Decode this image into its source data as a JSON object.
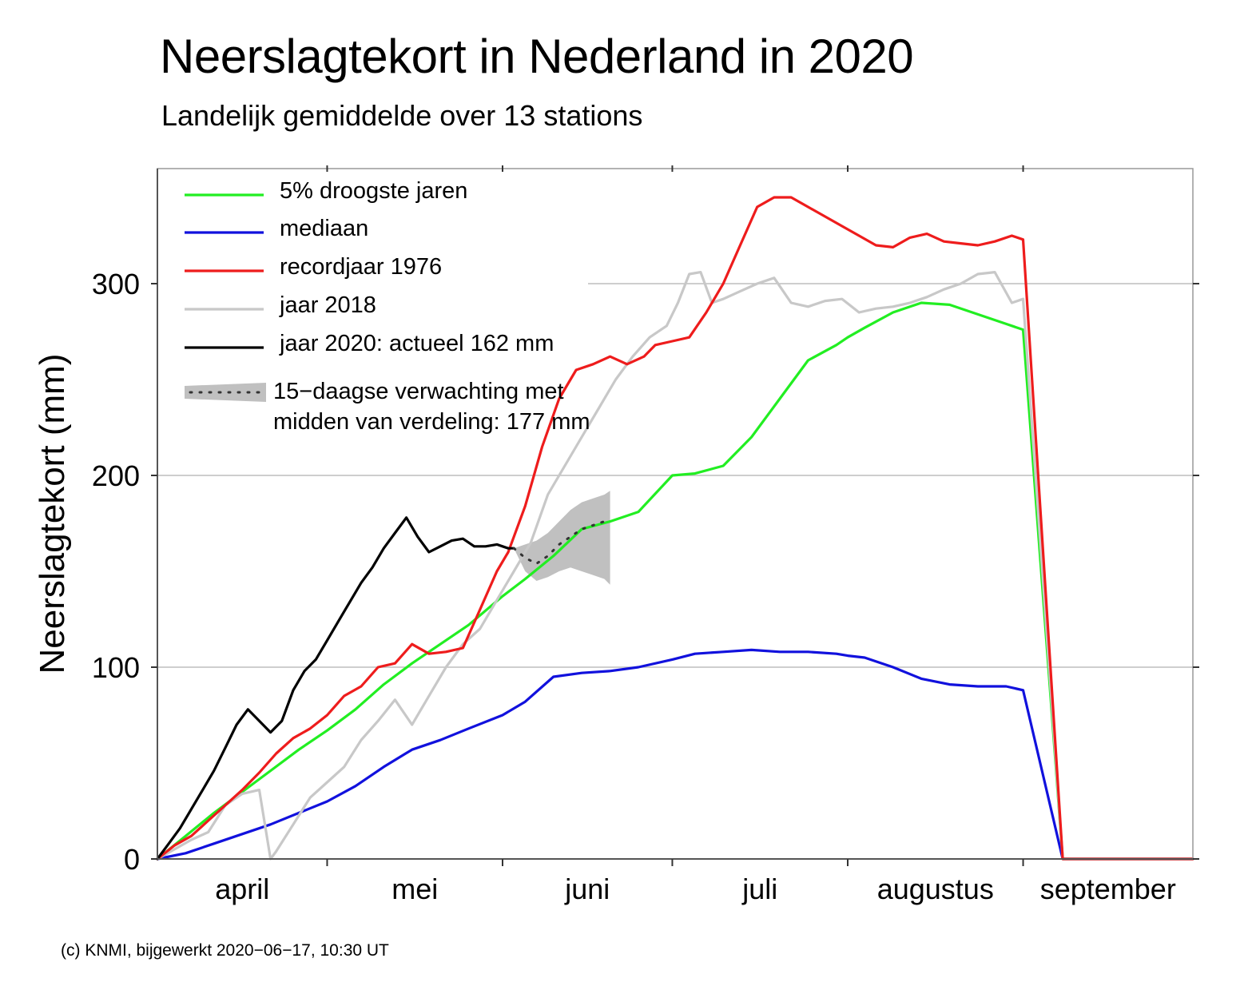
{
  "title": "Neerslagtekort in Nederland in 2020",
  "subtitle": "Landelijk gemiddelde over 13 stations",
  "footer": "(c) KNMI, bijgewerkt 2020−06−17, 10:30 UT",
  "colors": {
    "green": "#22ee22",
    "blue": "#1111dd",
    "red": "#ee1c1c",
    "gray": "#c8c8c8",
    "black": "#000000",
    "band": "#c0c0c0",
    "grid": "#bdbdbd"
  },
  "chart_data": {
    "type": "line",
    "ylabel": "Neerslagtekort (mm)",
    "xlabel": "",
    "ylim": [
      0,
      360
    ],
    "yticks": [
      0,
      100,
      200,
      300
    ],
    "x_unit": "day of season (0 = 1 april)",
    "xlim": [
      0,
      183
    ],
    "months": [
      {
        "label": "april",
        "start": 0,
        "end": 30
      },
      {
        "label": "mei",
        "start": 30,
        "end": 61
      },
      {
        "label": "juni",
        "start": 61,
        "end": 91
      },
      {
        "label": "juli",
        "start": 91,
        "end": 122
      },
      {
        "label": "augustus",
        "start": 122,
        "end": 153
      },
      {
        "label": "september",
        "start": 153,
        "end": 183
      }
    ],
    "grid": true,
    "legend_position": "top-left",
    "legend": [
      {
        "label": "5% droogste jaren",
        "series": "p95"
      },
      {
        "label": "mediaan",
        "series": "median"
      },
      {
        "label": "recordjaar 1976",
        "series": "y1976"
      },
      {
        "label": "jaar 2018",
        "series": "y2018"
      },
      {
        "label": "jaar 2020: actueel 162 mm",
        "series": "y2020"
      },
      {
        "label": "15−daagse verwachting met\nmidden van verdeling: 177 mm",
        "series": "forecast"
      }
    ],
    "series": [
      {
        "key": "p95",
        "color": "green",
        "x": [
          0,
          5,
          10,
          15,
          20,
          25,
          30,
          35,
          40,
          45,
          50,
          55,
          61,
          65,
          70,
          75,
          80,
          85,
          91,
          95,
          100,
          105,
          110,
          115,
          120,
          122,
          125,
          130,
          135,
          140,
          145,
          150,
          153,
          160,
          165,
          170,
          175,
          180,
          183
        ],
        "values": [
          0,
          12,
          24,
          35,
          46,
          57,
          67,
          78,
          91,
          102,
          112,
          122,
          137,
          146,
          158,
          172,
          176,
          181,
          200,
          201,
          205,
          220,
          240,
          260,
          268,
          272,
          277,
          285,
          290,
          289,
          284,
          279,
          276,
          0,
          0,
          0,
          0,
          0,
          0
        ]
      },
      {
        "key": "median",
        "color": "blue",
        "x": [
          0,
          5,
          10,
          15,
          20,
          25,
          30,
          35,
          40,
          45,
          50,
          55,
          61,
          65,
          70,
          75,
          80,
          85,
          91,
          95,
          100,
          105,
          110,
          115,
          120,
          122,
          125,
          130,
          135,
          140,
          145,
          150,
          153,
          160,
          165,
          170,
          175,
          180,
          183
        ],
        "values": [
          0,
          3,
          8,
          13,
          18,
          24,
          30,
          38,
          48,
          57,
          62,
          68,
          75,
          82,
          95,
          97,
          98,
          100,
          104,
          107,
          108,
          109,
          108,
          108,
          107,
          106,
          105,
          100,
          94,
          91,
          90,
          90,
          88,
          0,
          0,
          0,
          0,
          0,
          0
        ]
      },
      {
        "key": "y1976",
        "color": "red",
        "x": [
          0,
          3,
          6,
          9,
          12,
          15,
          18,
          21,
          24,
          27,
          30,
          33,
          36,
          39,
          42,
          45,
          48,
          51,
          54,
          57,
          60,
          62,
          65,
          68,
          71,
          74,
          77,
          80,
          83,
          86,
          88,
          91,
          94,
          97,
          100,
          103,
          106,
          109,
          112,
          115,
          118,
          121,
          124,
          127,
          130,
          133,
          136,
          139,
          142,
          145,
          148,
          151,
          153,
          160,
          170,
          180,
          183
        ],
        "values": [
          0,
          7,
          12,
          20,
          28,
          36,
          45,
          55,
          63,
          68,
          75,
          85,
          90,
          100,
          102,
          112,
          107,
          108,
          110,
          130,
          150,
          160,
          184,
          215,
          240,
          255,
          258,
          262,
          258,
          262,
          268,
          270,
          272,
          285,
          300,
          320,
          340,
          345,
          345,
          340,
          335,
          330,
          325,
          320,
          319,
          324,
          326,
          322,
          321,
          320,
          322,
          325,
          323,
          0,
          0,
          0,
          0
        ]
      },
      {
        "key": "y2018",
        "color": "gray",
        "x": [
          0,
          3,
          6,
          9,
          12,
          15,
          18,
          20,
          21,
          24,
          27,
          30,
          33,
          36,
          39,
          42,
          45,
          48,
          51,
          54,
          57,
          60,
          63,
          66,
          69,
          72,
          75,
          78,
          81,
          84,
          87,
          90,
          92,
          94,
          96,
          98,
          100,
          103,
          106,
          109,
          112,
          115,
          118,
          121,
          124,
          127,
          130,
          133,
          136,
          139,
          142,
          145,
          148,
          151,
          153,
          160,
          170,
          180,
          183
        ],
        "values": [
          0,
          5,
          10,
          14,
          28,
          34,
          36,
          0,
          4,
          18,
          32,
          40,
          48,
          62,
          72,
          83,
          70,
          85,
          100,
          112,
          120,
          135,
          150,
          165,
          190,
          205,
          220,
          235,
          250,
          262,
          272,
          278,
          290,
          305,
          306,
          290,
          292,
          296,
          300,
          303,
          290,
          288,
          291,
          292,
          285,
          287,
          288,
          290,
          293,
          297,
          300,
          305,
          306,
          290,
          292,
          0,
          0,
          0,
          0
        ]
      },
      {
        "key": "y2020",
        "color": "black",
        "x": [
          0,
          2,
          4,
          6,
          8,
          10,
          12,
          14,
          16,
          18,
          20,
          22,
          24,
          26,
          28,
          30,
          32,
          34,
          36,
          38,
          40,
          42,
          44,
          46,
          48,
          50,
          52,
          54,
          56,
          58,
          60,
          61,
          62,
          63
        ],
        "values": [
          0,
          8,
          16,
          26,
          36,
          46,
          58,
          70,
          78,
          72,
          66,
          72,
          88,
          98,
          104,
          114,
          124,
          134,
          144,
          152,
          162,
          170,
          178,
          168,
          160,
          163,
          166,
          167,
          163,
          163,
          164,
          163,
          162,
          162
        ]
      }
    ],
    "forecast": {
      "x": [
        63,
        65,
        67,
        69,
        71,
        73,
        75,
        77,
        79,
        80
      ],
      "mid": [
        162,
        157,
        154,
        158,
        164,
        168,
        172,
        174,
        176,
        177
      ],
      "low": [
        162,
        150,
        145,
        147,
        150,
        152,
        150,
        148,
        146,
        143
      ],
      "high": [
        162,
        164,
        166,
        170,
        176,
        182,
        186,
        188,
        190,
        192
      ]
    }
  }
}
